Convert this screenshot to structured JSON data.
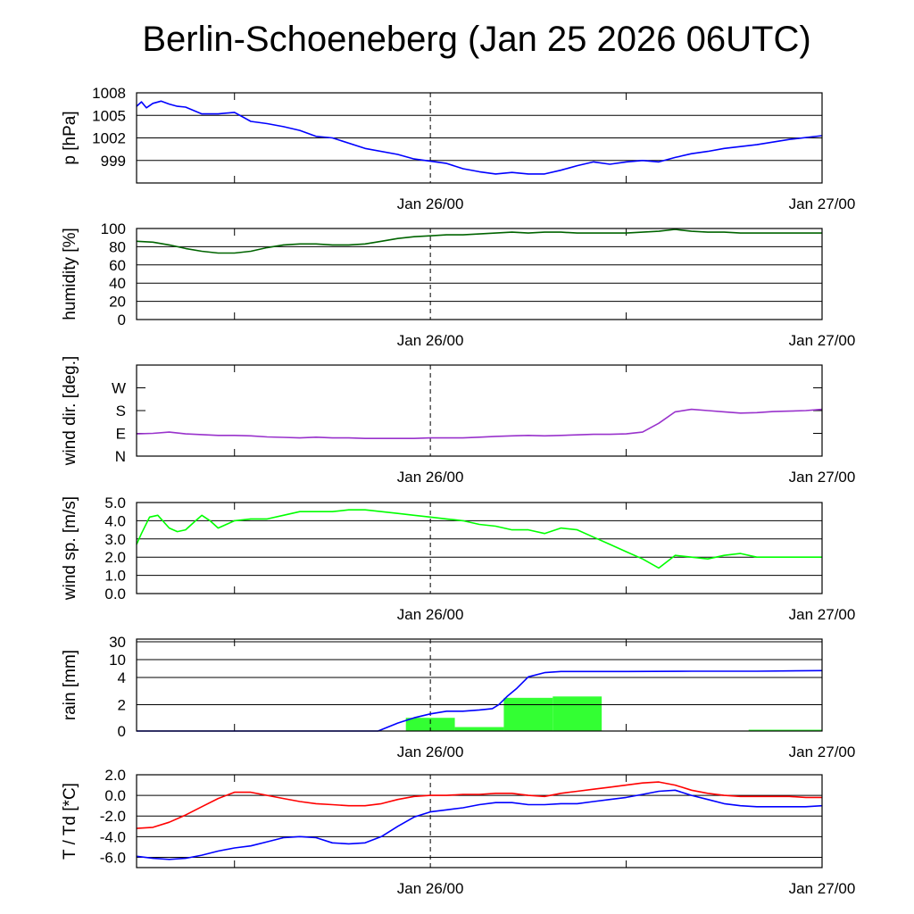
{
  "title": "Berlin-Schoeneberg (Jan 25 2026 06UTC)",
  "x_axis": {
    "range_hours": [
      0,
      42
    ],
    "tick_labels": [
      "Jan 26/00",
      "Jan 27/00"
    ],
    "tick_label_hours": [
      18,
      42
    ],
    "minor_tick_hours": [
      6,
      30
    ],
    "dashed_marker_hour": 18
  },
  "chart_data": [
    {
      "type": "line",
      "id": "pressure",
      "ylabel": "p [hPa]",
      "ylim": [
        996,
        1008
      ],
      "yticks": [
        999,
        1002,
        1005,
        1008
      ],
      "ytick_labels": [
        "999",
        "1002",
        "1005",
        "1008"
      ],
      "grid": true,
      "series": [
        {
          "color": "#0000ff",
          "x": [
            0,
            0.3,
            0.6,
            1,
            1.5,
            2,
            2.5,
            3,
            4,
            5,
            6,
            7,
            8,
            9,
            10,
            11,
            12,
            14,
            16,
            17,
            18,
            19,
            20,
            21,
            22,
            23,
            24,
            25,
            26,
            27,
            28,
            29,
            30,
            31,
            32,
            33,
            34,
            35,
            36,
            38,
            40,
            42
          ],
          "y": [
            1006.2,
            1006.8,
            1006.0,
            1006.6,
            1006.9,
            1006.5,
            1006.2,
            1006.1,
            1005.2,
            1005.2,
            1005.4,
            1004.2,
            1003.9,
            1003.5,
            1003.0,
            1002.2,
            1002.0,
            1000.6,
            999.8,
            999.2,
            998.9,
            998.6,
            997.9,
            997.5,
            997.2,
            997.4,
            997.2,
            997.2,
            997.7,
            998.3,
            998.8,
            998.5,
            998.8,
            999.0,
            998.8,
            999.4,
            999.9,
            1000.2,
            1000.6,
            1001.1,
            1001.8,
            1002.3
          ]
        }
      ]
    },
    {
      "type": "line",
      "id": "humidity",
      "ylabel": "humidity [%]",
      "ylim": [
        0,
        100
      ],
      "yticks": [
        0,
        20,
        40,
        60,
        80,
        100
      ],
      "ytick_labels": [
        "0",
        "20",
        "40",
        "60",
        "80",
        "100"
      ],
      "grid": true,
      "series": [
        {
          "color": "#006400",
          "x": [
            0,
            1,
            2,
            3,
            4,
            5,
            6,
            7,
            8,
            9,
            10,
            11,
            12,
            13,
            14,
            15,
            16,
            17,
            18,
            19,
            20,
            21,
            22,
            23,
            24,
            25,
            26,
            27,
            28,
            29,
            30,
            31,
            32,
            33,
            34,
            35,
            36,
            37,
            38,
            39,
            40,
            41,
            42
          ],
          "y": [
            86,
            85,
            82,
            78,
            75,
            73,
            73,
            75,
            79,
            82,
            83,
            83,
            82,
            82,
            83,
            86,
            89,
            91,
            92,
            93,
            93,
            94,
            95,
            96,
            95,
            96,
            96,
            95,
            95,
            95,
            95,
            96,
            97,
            99,
            97,
            96,
            96,
            95,
            95,
            95,
            95,
            95,
            95
          ]
        }
      ]
    },
    {
      "type": "line",
      "id": "wind_direction",
      "ylabel": "wind dir. [deg.]",
      "ylim": [
        0,
        360
      ],
      "yticks": [
        0,
        90,
        180,
        270
      ],
      "ytick_labels": [
        "N",
        "E",
        "S",
        "W"
      ],
      "grid": false,
      "series": [
        {
          "color": "#9932cc",
          "x": [
            0,
            1,
            2,
            3,
            4,
            5,
            6,
            7,
            8,
            9,
            10,
            11,
            12,
            13,
            14,
            15,
            16,
            17,
            18,
            19,
            20,
            21,
            22,
            23,
            24,
            25,
            26,
            27,
            28,
            29,
            30,
            31,
            32,
            33,
            34,
            35,
            36,
            37,
            38,
            39,
            40,
            41,
            42
          ],
          "y": [
            88,
            90,
            95,
            88,
            85,
            82,
            82,
            80,
            76,
            74,
            72,
            75,
            72,
            72,
            70,
            70,
            70,
            70,
            72,
            72,
            72,
            75,
            78,
            80,
            82,
            80,
            82,
            84,
            86,
            86,
            88,
            95,
            130,
            175,
            185,
            180,
            175,
            170,
            172,
            176,
            178,
            180,
            185
          ]
        }
      ]
    },
    {
      "type": "line",
      "id": "wind_speed",
      "ylabel": "wind sp. [m/s]",
      "ylim": [
        0,
        5
      ],
      "yticks": [
        0,
        1,
        2,
        3,
        4,
        5
      ],
      "ytick_labels": [
        "0.0",
        "1.0",
        "2.0",
        "3.0",
        "4.0",
        "5.0"
      ],
      "grid": true,
      "series": [
        {
          "color": "#00ff00",
          "x": [
            0,
            0.3,
            0.8,
            1.3,
            2,
            2.5,
            3,
            3.5,
            4,
            4.5,
            5,
            5.5,
            6,
            7,
            8,
            9,
            10,
            11,
            12,
            13,
            14,
            15,
            16,
            17,
            18,
            19,
            20,
            21,
            22,
            23,
            24,
            25,
            26,
            27,
            28,
            29,
            30,
            31,
            32,
            33,
            34,
            35,
            36,
            37,
            38,
            39,
            40,
            41,
            42
          ],
          "y": [
            2.7,
            3.3,
            4.2,
            4.3,
            3.6,
            3.4,
            3.5,
            3.9,
            4.3,
            4.0,
            3.6,
            3.8,
            4.0,
            4.1,
            4.1,
            4.3,
            4.5,
            4.5,
            4.5,
            4.6,
            4.6,
            4.5,
            4.4,
            4.3,
            4.2,
            4.1,
            4.0,
            3.8,
            3.7,
            3.5,
            3.5,
            3.3,
            3.6,
            3.5,
            3.1,
            2.7,
            2.3,
            1.9,
            1.4,
            2.1,
            2.0,
            1.9,
            2.1,
            2.2,
            2.0,
            2.0,
            2.0,
            2.0,
            2.0
          ]
        }
      ]
    },
    {
      "type": "bar+line",
      "id": "rain",
      "ylabel": "rain [mm]",
      "scale": "nonlinear",
      "yticks": [
        0,
        2,
        4,
        10,
        30
      ],
      "ytick_labels": [
        "0",
        "2",
        "4",
        "10",
        "30"
      ],
      "grid": true,
      "bars": {
        "color": "#33ff33",
        "bins": [
          {
            "start": 16.5,
            "end": 19.5,
            "value": 1.0
          },
          {
            "start": 19.5,
            "end": 22.5,
            "value": 0.3
          },
          {
            "start": 22.5,
            "end": 25.5,
            "value": 2.5
          },
          {
            "start": 25.5,
            "end": 28.5,
            "value": 2.6
          },
          {
            "start": 31.5,
            "end": 34.5,
            "value": 0.03
          },
          {
            "start": 37.5,
            "end": 42,
            "value": 0.1
          }
        ]
      },
      "series": [
        {
          "color": "#0000ff",
          "x": [
            0,
            14.8,
            16,
            17,
            18,
            19,
            20,
            21,
            21.8,
            22.2,
            22.7,
            23.3,
            24,
            25,
            26,
            30,
            34,
            38,
            42
          ],
          "y": [
            0,
            0,
            0.6,
            1.0,
            1.3,
            1.5,
            1.5,
            1.6,
            1.7,
            2.0,
            2.6,
            3.2,
            4.2,
            5.6,
            6.0,
            6.0,
            6.1,
            6.1,
            6.3
          ]
        }
      ]
    },
    {
      "type": "line",
      "id": "temperature_dewpoint",
      "ylabel": "T / Td [*C]",
      "ylim": [
        -7,
        2
      ],
      "yticks": [
        -6,
        -4,
        -2,
        0,
        2
      ],
      "ytick_labels": [
        "-6.0",
        "-4.0",
        "-2.0",
        "0.0",
        "2.0"
      ],
      "grid": true,
      "series": [
        {
          "color": "#ff0000",
          "x": [
            0,
            1,
            2,
            3,
            4,
            5,
            6,
            7,
            8,
            9,
            10,
            11,
            12,
            13,
            14,
            15,
            16,
            17,
            18,
            19,
            20,
            21,
            22,
            23,
            24,
            25,
            26,
            27,
            28,
            29,
            30,
            31,
            32,
            33,
            34,
            35,
            36,
            37,
            38,
            39,
            40,
            41,
            42
          ],
          "y": [
            -3.2,
            -3.1,
            -2.6,
            -1.9,
            -1.1,
            -0.3,
            0.3,
            0.3,
            0.0,
            -0.3,
            -0.6,
            -0.8,
            -0.9,
            -1.0,
            -1.0,
            -0.8,
            -0.4,
            -0.1,
            0.0,
            0.0,
            0.1,
            0.1,
            0.2,
            0.2,
            0.0,
            -0.1,
            0.2,
            0.4,
            0.6,
            0.8,
            1.0,
            1.2,
            1.3,
            1.0,
            0.5,
            0.2,
            0.0,
            -0.1,
            -0.1,
            -0.1,
            -0.1,
            -0.2,
            -0.2
          ]
        },
        {
          "color": "#0000ff",
          "x": [
            0,
            1,
            2,
            3,
            4,
            5,
            6,
            7,
            8,
            9,
            10,
            11,
            12,
            13,
            14,
            15,
            16,
            17,
            18,
            19,
            20,
            21,
            22,
            23,
            24,
            25,
            26,
            27,
            28,
            29,
            30,
            31,
            32,
            33,
            34,
            35,
            36,
            37,
            38,
            39,
            40,
            41,
            42
          ],
          "y": [
            -5.9,
            -6.1,
            -6.2,
            -6.1,
            -5.8,
            -5.4,
            -5.1,
            -4.9,
            -4.5,
            -4.1,
            -4.0,
            -4.1,
            -4.6,
            -4.7,
            -4.6,
            -4.0,
            -3.0,
            -2.1,
            -1.6,
            -1.4,
            -1.2,
            -0.9,
            -0.7,
            -0.7,
            -0.9,
            -0.9,
            -0.8,
            -0.8,
            -0.6,
            -0.4,
            -0.2,
            0.1,
            0.4,
            0.5,
            0.0,
            -0.4,
            -0.8,
            -1.0,
            -1.1,
            -1.1,
            -1.1,
            -1.1,
            -1.0
          ]
        }
      ]
    }
  ]
}
